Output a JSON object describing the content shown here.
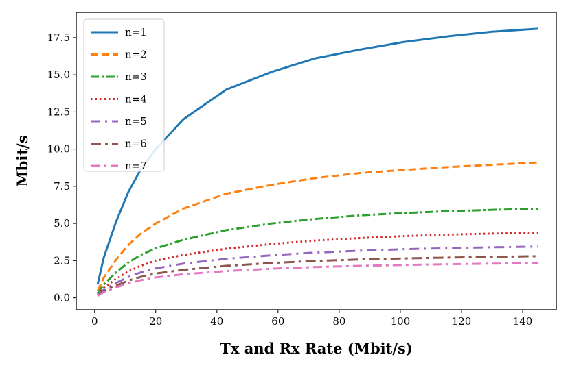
{
  "chart_data": {
    "type": "line",
    "title": "",
    "xlabel": "Tx and Rx Rate (Mbit/s)",
    "ylabel": "Mbit/s",
    "xlim": [
      -6,
      151
    ],
    "ylim": [
      -0.8,
      19.2
    ],
    "xticks": [
      0,
      20,
      40,
      60,
      80,
      100,
      120,
      140
    ],
    "xtick_labels": [
      "0",
      "20",
      "40",
      "60",
      "80",
      "100",
      "120",
      "140"
    ],
    "yticks": [
      0.0,
      2.5,
      5.0,
      7.5,
      10.0,
      12.5,
      15.0,
      17.5
    ],
    "ytick_labels": [
      "0.0",
      "2.5",
      "5.0",
      "7.5",
      "10.0",
      "12.5",
      "15.0",
      "17.5"
    ],
    "grid": false,
    "legend_position": "top-left",
    "x": [
      1,
      3,
      7,
      11,
      15,
      20,
      29,
      43,
      58,
      72,
      87,
      101,
      116,
      130,
      145
    ],
    "series": [
      {
        "name": "n=1",
        "color": "#1f77b4",
        "style": "solid",
        "values": [
          0.9,
          2.7,
          5.1,
          7.1,
          8.6,
          10.0,
          12.0,
          14.0,
          15.2,
          16.1,
          16.7,
          17.2,
          17.6,
          17.9,
          18.1
        ]
      },
      {
        "name": "n=2",
        "color": "#ff7f0e",
        "style": "dashed",
        "values": [
          0.45,
          1.35,
          2.55,
          3.55,
          4.3,
          5.0,
          6.0,
          7.0,
          7.6,
          8.05,
          8.4,
          8.6,
          8.8,
          8.95,
          9.1
        ]
      },
      {
        "name": "n=3",
        "color": "#2ca02c",
        "style": "dashdot",
        "values": [
          0.3,
          0.9,
          1.7,
          2.37,
          2.87,
          3.33,
          3.9,
          4.55,
          5.0,
          5.3,
          5.55,
          5.7,
          5.83,
          5.92,
          6.0
        ]
      },
      {
        "name": "n=4",
        "color": "#d62728",
        "style": "dotted",
        "values": [
          0.22,
          0.67,
          1.27,
          1.77,
          2.15,
          2.5,
          2.88,
          3.3,
          3.62,
          3.85,
          4.02,
          4.15,
          4.25,
          4.32,
          4.37
        ]
      },
      {
        "name": "n=5",
        "color": "#9467bd",
        "style": "dash5",
        "values": [
          0.18,
          0.54,
          1.0,
          1.4,
          1.7,
          1.98,
          2.3,
          2.62,
          2.86,
          3.04,
          3.17,
          3.27,
          3.34,
          3.4,
          3.45
        ]
      },
      {
        "name": "n=6",
        "color": "#8c564b",
        "style": "dash6",
        "values": [
          0.15,
          0.45,
          0.83,
          1.15,
          1.4,
          1.63,
          1.88,
          2.15,
          2.34,
          2.48,
          2.58,
          2.65,
          2.71,
          2.76,
          2.8
        ]
      },
      {
        "name": "n=7",
        "color": "#e377c2",
        "style": "dash7",
        "values": [
          0.13,
          0.38,
          0.7,
          0.97,
          1.18,
          1.37,
          1.58,
          1.8,
          1.96,
          2.07,
          2.15,
          2.21,
          2.26,
          2.3,
          2.33
        ]
      }
    ]
  }
}
